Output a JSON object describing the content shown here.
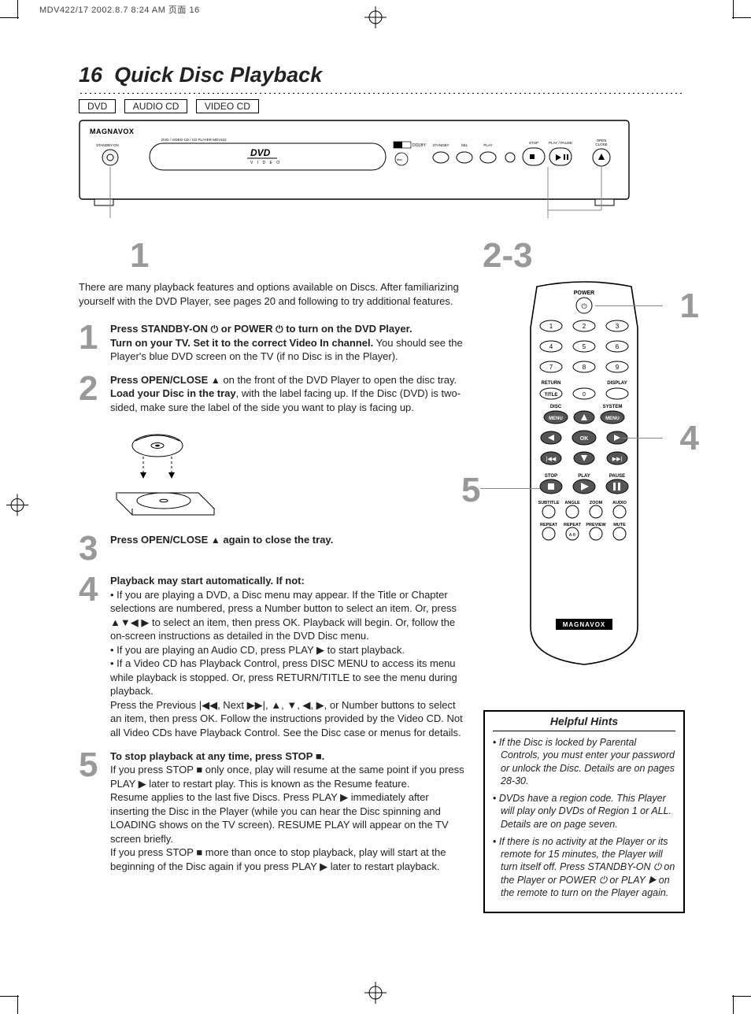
{
  "job_line": "MDV422/17  2002.8.7  8:24 AM  页面 16",
  "page_number": "16",
  "page_title": "Quick Disc Playback",
  "badges": [
    "DVD",
    "AUDIO CD",
    "VIDEO CD"
  ],
  "player": {
    "brand": "MAGNAVOX",
    "model_line": "DVD / VIDEO CD / CD PLAYER  MDV422",
    "standby_label": "STANDBY-ON",
    "disc_logo": "DVD",
    "disc_logo_sub": "V I D E O",
    "btn_labels": [
      "STANDBY",
      "SEL",
      "PLAY"
    ],
    "btn_stop": "STOP",
    "btn_playpause": "PLAY / PAUSE",
    "btn_open": "OPEN\nCLOSE",
    "callout_1": "1",
    "callout_23": "2-3"
  },
  "intro": "There are many playback features and options available on Discs. After familiarizing yourself with the DVD Player, see pages 20 and following to try additional features.",
  "steps": {
    "s1": {
      "n": "1",
      "b1": "Press STANDBY-ON ",
      "b1_sym": "⏻",
      "b1_mid": " or POWER ",
      "b1_end": " to turn on the DVD Player.",
      "b2": "Turn on your TV. Set it to the correct Video In channel.",
      "t2": " You should see the Player's blue DVD screen on the TV (if no Disc is in the Player)."
    },
    "s2": {
      "n": "2",
      "b1": "Press OPEN/CLOSE ",
      "sym": "▲",
      "t1": " on the front of the DVD Player to open the disc tray.",
      "b2": "Load your Disc in the tray",
      "t2": ", with the label facing up. If the Disc (DVD) is two-sided, make sure the label of the side you want to play is facing up."
    },
    "s3": {
      "n": "3",
      "b1": "Press OPEN/CLOSE ",
      "sym": "▲",
      "t1": " again to close the tray."
    },
    "s4": {
      "n": "4",
      "b1": "Playback may start automatically. If not:",
      "p1": "• If you are playing a DVD, a Disc menu may appear. If the Title or Chapter selections are numbered, press a Number button to select an item. Or, press ▲▼◀ ▶ to select an item, then press OK. Playback will begin. Or, follow the on-screen instructions as detailed in the DVD Disc menu.",
      "p2": "• If you are playing an Audio CD, press PLAY ▶ to start playback.",
      "p3": "• If a Video CD has Playback Control, press DISC MENU to access its menu while playback is stopped. Or, press RETURN/TITLE to see the menu during playback.",
      "p4": "Press the Previous |◀◀, Next ▶▶|, ▲, ▼, ◀, ▶, or Number buttons to select an item, then press OK. Follow the instructions provided by the Video CD. Not all Video CDs have Playback Control. See the Disc case or menus for details."
    },
    "s5": {
      "n": "5",
      "b1": "To stop playback at any time, press STOP ■.",
      "p1": "If you press STOP ■ only once, play will resume at the same point if you press PLAY ▶ later to restart play. This is known as the Resume feature.",
      "p2": "Resume applies to the last five Discs. Press PLAY ▶ immediately after inserting the Disc in the Player (while you can hear the Disc spinning and LOADING shows on the TV screen). RESUME PLAY will appear on the TV screen briefly.",
      "p3": "If you press STOP ■ more than once to stop playback, play will start at the beginning of the Disc again if you press PLAY ▶ later to restart playback."
    }
  },
  "remote": {
    "brand": "MAGNAVOX",
    "power": "POWER",
    "labels": {
      "return": "RETURN",
      "display": "DISPLAY",
      "title": "TITLE",
      "disc": "DISC",
      "system": "SYSTEM",
      "menu_l": "MENU",
      "menu_r": "MENU",
      "stop": "STOP",
      "play": "PLAY",
      "pause": "PAUSE",
      "subtitle": "SUBTITLE",
      "angle": "ANGLE",
      "zoom": "ZOOM",
      "audio": "AUDIO",
      "repeat": "REPEAT",
      "repeat_ab": "REPEAT",
      "preview": "PREVIEW",
      "mute": "MUTE",
      "ok": "OK",
      "ab": "A-B"
    },
    "callouts": {
      "c1": "1",
      "c4": "4",
      "c5": "5"
    }
  },
  "hints": {
    "title": "Helpful Hints",
    "items": [
      "If the Disc is locked by Parental Controls, you must enter your password or unlock the Disc. Details are on pages 28-30.",
      "DVDs have a region code. This Player will play only DVDs of Region 1 or ALL. Details are on page seven.",
      "If there is no activity at the Player or its remote for 15 minutes, the Player will turn itself off. Press STANDBY-ON ⏻ on the Player or POWER ⏻ or PLAY ▶ on the remote to turn on the Player again."
    ]
  },
  "colors": {
    "num_gray": "#999999",
    "line_gray": "#888888",
    "text": "#222222",
    "border": "#000000"
  }
}
